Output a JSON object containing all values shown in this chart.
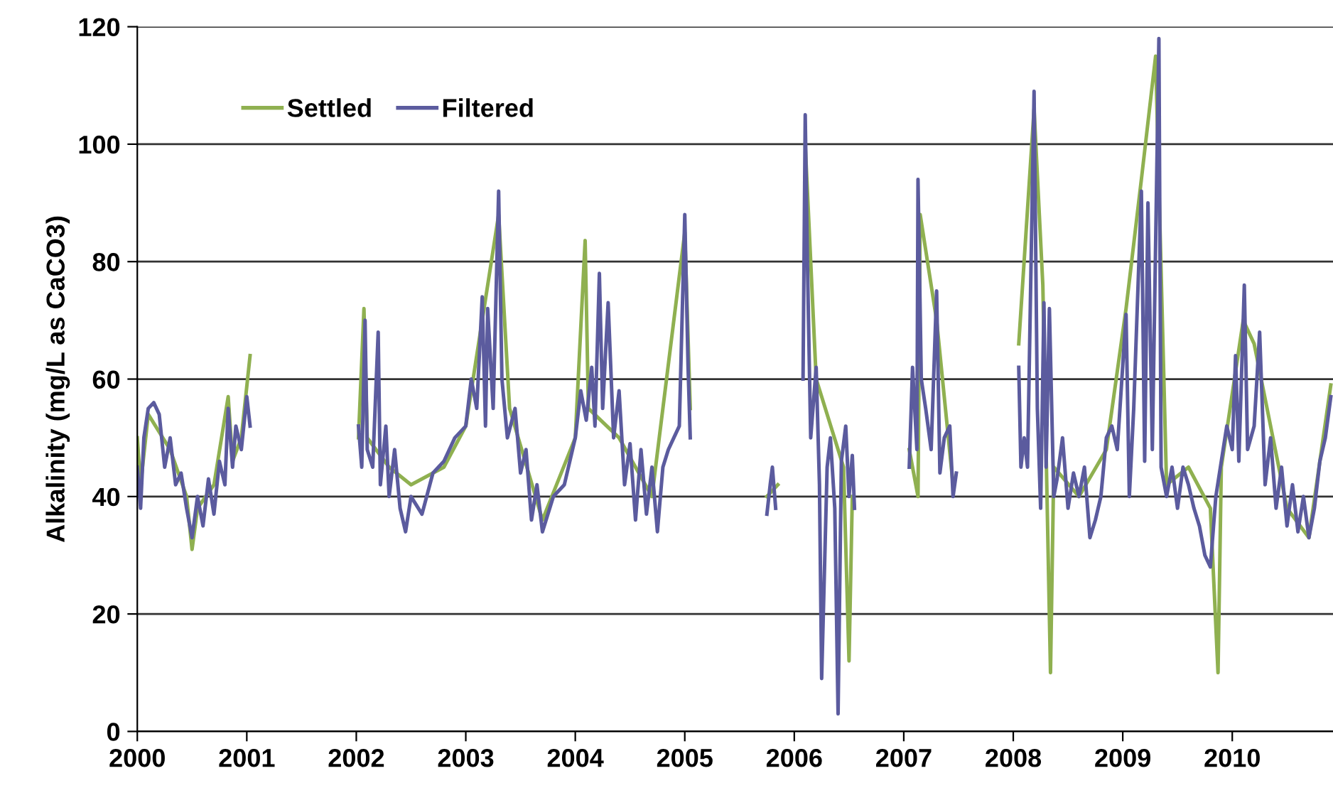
{
  "chart_data": {
    "type": "line",
    "ylabel": "Alkalinity (mg/L as CaCO3)",
    "xlim": [
      2000,
      2010.92
    ],
    "xticks": [
      2000,
      2001,
      2002,
      2003,
      2004,
      2005,
      2006,
      2007,
      2008,
      2009,
      2010
    ],
    "ylim": [
      0,
      120
    ],
    "yticks": [
      0,
      20,
      40,
      60,
      80,
      100,
      120
    ],
    "grid": "y",
    "legend": "top left",
    "line_style": "solid",
    "marker": "none",
    "series": [
      {
        "name": "Settled",
        "color": "#8fb050",
        "x": [
          2000.0,
          2000.03,
          2000.1,
          2000.3,
          2000.45,
          2000.5,
          2000.55,
          2000.7,
          2000.83,
          2000.87,
          2000.95,
          2001.03,
          2001.5,
          2002.02,
          2002.07,
          2002.1,
          2002.3,
          2002.5,
          2002.8,
          2003.0,
          2003.3,
          2003.4,
          2003.7,
          2004.0,
          2004.09,
          2004.12,
          2004.4,
          2004.7,
          2005.0,
          2005.05,
          2005.4,
          2005.75,
          2005.85,
          2005.95,
          2006.1,
          2006.2,
          2006.45,
          2006.5,
          2006.53,
          2006.8,
          2007.05,
          2007.13,
          2007.15,
          2007.3,
          2007.45,
          2007.7,
          2008.05,
          2008.19,
          2008.27,
          2008.34,
          2008.37,
          2008.6,
          2008.85,
          2009.03,
          2009.17,
          2009.3,
          2009.4,
          2009.6,
          2009.8,
          2009.87,
          2009.9,
          2010.1,
          2010.2,
          2010.5,
          2010.7,
          2010.9
        ],
        "values": [
          50,
          42,
          54,
          48,
          40,
          31,
          38,
          42,
          57,
          46,
          50,
          64,
          null,
          50,
          72,
          50,
          45,
          42,
          45,
          52,
          88,
          55,
          36,
          50,
          83.6,
          55,
          50,
          40,
          85,
          55,
          null,
          40,
          42,
          null,
          100,
          60,
          45,
          12,
          40,
          null,
          48,
          40,
          88,
          70,
          42,
          null,
          66,
          106,
          76,
          10,
          45,
          40,
          48,
          72,
          94,
          115,
          42,
          45,
          38,
          10,
          45,
          70,
          66,
          38,
          33,
          59
        ]
      },
      {
        "name": "Filtered",
        "color": "#5b5b9e",
        "x": [
          2000.0,
          2000.03,
          2000.06,
          2000.1,
          2000.15,
          2000.2,
          2000.25,
          2000.3,
          2000.35,
          2000.4,
          2000.45,
          2000.5,
          2000.55,
          2000.6,
          2000.65,
          2000.7,
          2000.75,
          2000.8,
          2000.83,
          2000.87,
          2000.9,
          2000.95,
          2001.0,
          2001.03,
          2001.5,
          2002.02,
          2002.05,
          2002.08,
          2002.1,
          2002.15,
          2002.2,
          2002.22,
          2002.27,
          2002.3,
          2002.35,
          2002.4,
          2002.45,
          2002.5,
          2002.6,
          2002.7,
          2002.8,
          2002.9,
          2003.0,
          2003.05,
          2003.1,
          2003.15,
          2003.18,
          2003.2,
          2003.25,
          2003.3,
          2003.33,
          2003.38,
          2003.45,
          2003.5,
          2003.55,
          2003.6,
          2003.65,
          2003.7,
          2003.8,
          2003.9,
          2004.0,
          2004.05,
          2004.1,
          2004.15,
          2004.18,
          2004.22,
          2004.25,
          2004.3,
          2004.35,
          2004.4,
          2004.45,
          2004.5,
          2004.55,
          2004.6,
          2004.65,
          2004.7,
          2004.75,
          2004.8,
          2004.85,
          2004.9,
          2004.95,
          2005.0,
          2005.03,
          2005.05,
          2005.4,
          2005.75,
          2005.78,
          2005.8,
          2005.83,
          2005.95,
          2006.08,
          2006.1,
          2006.12,
          2006.15,
          2006.2,
          2006.23,
          2006.25,
          2006.3,
          2006.33,
          2006.37,
          2006.4,
          2006.43,
          2006.47,
          2006.5,
          2006.53,
          2006.55,
          2006.8,
          2007.05,
          2007.08,
          2007.12,
          2007.13,
          2007.16,
          2007.2,
          2007.25,
          2007.3,
          2007.33,
          2007.37,
          2007.42,
          2007.45,
          2007.48,
          2007.7,
          2008.05,
          2008.07,
          2008.1,
          2008.13,
          2008.19,
          2008.22,
          2008.25,
          2008.28,
          2008.3,
          2008.33,
          2008.37,
          2008.4,
          2008.45,
          2008.5,
          2008.55,
          2008.6,
          2008.65,
          2008.7,
          2008.75,
          2008.8,
          2008.85,
          2008.9,
          2008.95,
          2009.03,
          2009.06,
          2009.1,
          2009.17,
          2009.2,
          2009.23,
          2009.27,
          2009.33,
          2009.35,
          2009.4,
          2009.45,
          2009.5,
          2009.55,
          2009.6,
          2009.65,
          2009.7,
          2009.75,
          2009.8,
          2009.85,
          2009.9,
          2009.95,
          2010.0,
          2010.03,
          2010.06,
          2010.11,
          2010.14,
          2010.2,
          2010.25,
          2010.3,
          2010.35,
          2010.4,
          2010.45,
          2010.5,
          2010.55,
          2010.6,
          2010.65,
          2010.7,
          2010.75,
          2010.8,
          2010.85,
          2010.9
        ],
        "values": [
          45,
          38,
          50,
          55,
          56,
          54,
          45,
          50,
          42,
          44,
          38,
          33,
          40,
          35,
          43,
          37,
          46,
          42,
          55,
          45,
          52,
          48,
          57,
          52,
          null,
          52,
          45,
          70,
          48,
          45,
          68,
          42,
          52,
          40,
          48,
          38,
          34,
          40,
          37,
          44,
          46,
          50,
          52,
          60,
          55,
          74,
          52,
          72,
          55,
          92,
          60,
          50,
          55,
          44,
          48,
          36,
          42,
          34,
          40,
          42,
          50,
          58,
          53,
          62,
          52,
          78,
          55,
          73,
          50,
          58,
          42,
          49,
          36,
          48,
          37,
          45,
          34,
          45,
          48,
          50,
          52,
          88,
          62,
          50,
          null,
          37,
          42,
          45,
          38,
          null,
          60,
          105,
          80,
          50,
          62,
          42,
          9,
          45,
          50,
          38,
          3,
          46,
          52,
          40,
          47,
          38,
          null,
          45,
          62,
          48,
          94,
          60,
          55,
          48,
          75,
          44,
          50,
          52,
          40,
          44,
          null,
          62,
          45,
          50,
          45,
          109,
          55,
          38,
          73,
          45,
          72,
          40,
          43,
          50,
          38,
          44,
          40,
          45,
          33,
          36,
          40,
          50,
          52,
          48,
          71,
          40,
          55,
          92,
          46,
          90,
          48,
          118,
          45,
          40,
          45,
          38,
          45,
          42,
          38,
          35,
          30,
          28,
          40,
          46,
          52,
          48,
          64,
          46,
          76,
          48,
          52,
          68,
          42,
          50,
          38,
          45,
          35,
          42,
          34,
          40,
          33,
          38,
          46,
          50,
          57
        ]
      }
    ]
  }
}
